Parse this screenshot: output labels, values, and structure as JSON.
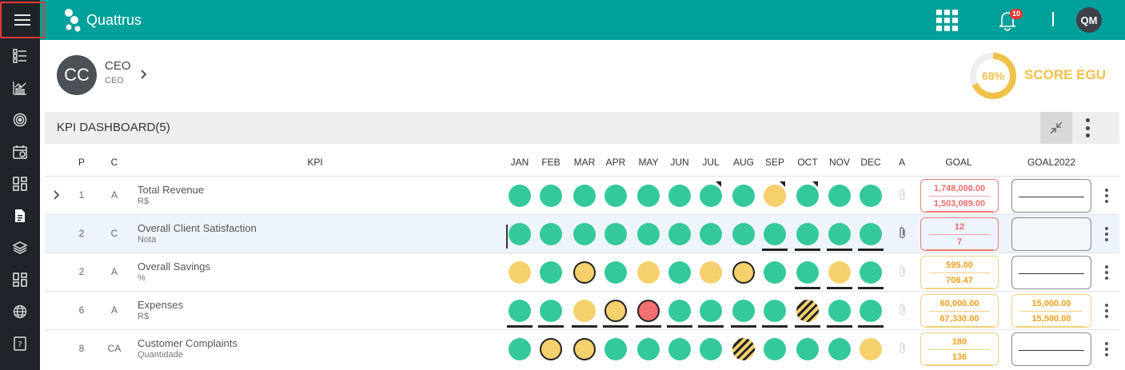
{
  "app": {
    "name": "Quattrus",
    "notifications_count": "10",
    "user_initials": "QM"
  },
  "colors": {
    "primary": "#00a19a",
    "green": "#34c99a",
    "yellow": "#f5d16d",
    "red": "#f46f6f",
    "sidebar": "#20232a"
  },
  "sidebar": {
    "items": [
      {
        "icon": "menu-icon"
      },
      {
        "icon": "list-icon"
      },
      {
        "icon": "chart-icon"
      },
      {
        "icon": "target-icon"
      },
      {
        "icon": "calendar-icon"
      },
      {
        "icon": "dashboard-icon"
      },
      {
        "icon": "document-icon"
      },
      {
        "icon": "layers-icon"
      },
      {
        "icon": "dashboard-icon"
      },
      {
        "icon": "globe-icon"
      },
      {
        "icon": "help-icon"
      }
    ]
  },
  "profile": {
    "initials": "CC",
    "name": "CEO",
    "role": "CEO"
  },
  "score": {
    "percent": "68%",
    "value": 68,
    "label": "SCORE EGU"
  },
  "dashboard": {
    "title": "KPI DASHBOARD(5)",
    "columns": {
      "p": "P",
      "c": "C",
      "kpi": "KPI",
      "a": "A",
      "goal": "GOAL",
      "goal2022": "GOAL2022"
    },
    "months": [
      "JAN",
      "FEB",
      "MAR",
      "APR",
      "MAY",
      "JUN",
      "JUL",
      "AUG",
      "SEP",
      "OCT",
      "NOV",
      "DEC"
    ],
    "rows": [
      {
        "p": "1",
        "c": "A",
        "name": "Total Revenue",
        "unit": "R$",
        "expandable": true,
        "statuses": [
          "green",
          "green",
          "green",
          "green",
          "green",
          "green",
          "green",
          "green",
          "yellow",
          "green",
          "green",
          "green"
        ],
        "ringed": [],
        "underlined": [],
        "hatched": [],
        "cornered": [
          6,
          8,
          9
        ],
        "goal": {
          "v1": "1,748,000.00",
          "v2": "1,503,089.00",
          "color": "red"
        },
        "goal2022": null,
        "has_attachment": false
      },
      {
        "p": "2",
        "c": "C",
        "name": "Overall Client Satisfaction",
        "unit": "Nota",
        "expandable": false,
        "statuses": [
          "green",
          "green",
          "green",
          "green",
          "green",
          "green",
          "green",
          "green",
          "green",
          "green",
          "green",
          "green"
        ],
        "ringed": [],
        "underlined": [
          8,
          9,
          10,
          11
        ],
        "hatched": [],
        "cornered": [],
        "goal": {
          "v1": "12",
          "v2": "7",
          "color": "red"
        },
        "goal2022": null,
        "has_attachment": true
      },
      {
        "p": "2",
        "c": "A",
        "name": "Overall Savings",
        "unit": "%",
        "expandable": false,
        "statuses": [
          "yellow",
          "green",
          "yellow",
          "green",
          "yellow",
          "green",
          "yellow",
          "yellow",
          "green",
          "green",
          "yellow",
          "green"
        ],
        "ringed": [
          2,
          7
        ],
        "underlined": [
          9,
          10,
          11
        ],
        "hatched": [],
        "cornered": [],
        "goal": {
          "v1": "595.00",
          "v2": "706.47",
          "color": "yellow"
        },
        "goal2022": null,
        "has_attachment": false
      },
      {
        "p": "6",
        "c": "A",
        "name": "Expenses",
        "unit": "R$",
        "expandable": false,
        "statuses": [
          "green",
          "green",
          "yellow",
          "yellow",
          "red",
          "green",
          "green",
          "green",
          "green",
          "yellow",
          "green",
          "green"
        ],
        "ringed": [
          3,
          4
        ],
        "underlined": [
          0,
          1,
          2,
          3,
          4,
          5,
          6,
          7,
          8,
          9,
          10,
          11
        ],
        "hatched": [
          9
        ],
        "cornered": [],
        "goal": {
          "v1": "60,000.00",
          "v2": "67,330.00",
          "color": "yellow"
        },
        "goal2022": {
          "v1": "15,000.00",
          "v2": "15,500.00"
        },
        "has_attachment": false
      },
      {
        "p": "8",
        "c": "CA",
        "name": "Customer Complaints",
        "unit": "Quantidade",
        "expandable": false,
        "statuses": [
          "green",
          "yellow",
          "yellow",
          "green",
          "green",
          "green",
          "green",
          "yellow",
          "green",
          "green",
          "green",
          "yellow"
        ],
        "ringed": [
          1,
          2
        ],
        "underlined": [],
        "hatched": [
          7
        ],
        "cornered": [],
        "goal": {
          "v1": "180",
          "v2": "136",
          "color": "yellow"
        },
        "goal2022": null,
        "has_attachment": false
      }
    ]
  }
}
